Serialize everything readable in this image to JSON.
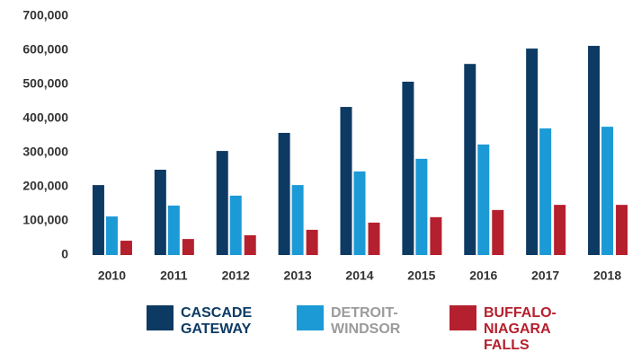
{
  "chart_data": {
    "type": "bar",
    "categories": [
      "2010",
      "2011",
      "2012",
      "2013",
      "2014",
      "2015",
      "2016",
      "2017",
      "2018"
    ],
    "series": [
      {
        "name": "CASCADE GATEWAY",
        "color": "#0d3a63",
        "values": [
          205000,
          250000,
          305000,
          358000,
          434000,
          508000,
          560000,
          605000,
          613000
        ]
      },
      {
        "name": "DETROIT-WINDSOR",
        "color": "#1b9ad6",
        "values": [
          113000,
          145000,
          174000,
          205000,
          245000,
          282000,
          324000,
          371000,
          376000
        ]
      },
      {
        "name": "BUFFALO-NIAGARA FALLS",
        "color": "#b5202e",
        "values": [
          42000,
          47000,
          58000,
          74000,
          95000,
          111000,
          132000,
          147000,
          147000
        ]
      }
    ],
    "ylim": [
      0,
      700000
    ],
    "yticks": [
      0,
      {
        "value": 100000,
        "label": "100,000"
      },
      {
        "value": 200000,
        "label": "200,000"
      },
      {
        "value": 300000,
        "label": "300,000"
      },
      {
        "value": 400000,
        "label": "400,000"
      },
      {
        "value": 500000,
        "label": "500,000"
      },
      {
        "value": 600000,
        "label": "600,000"
      },
      {
        "value": 700000,
        "label": "700,000"
      }
    ],
    "grid": true
  }
}
